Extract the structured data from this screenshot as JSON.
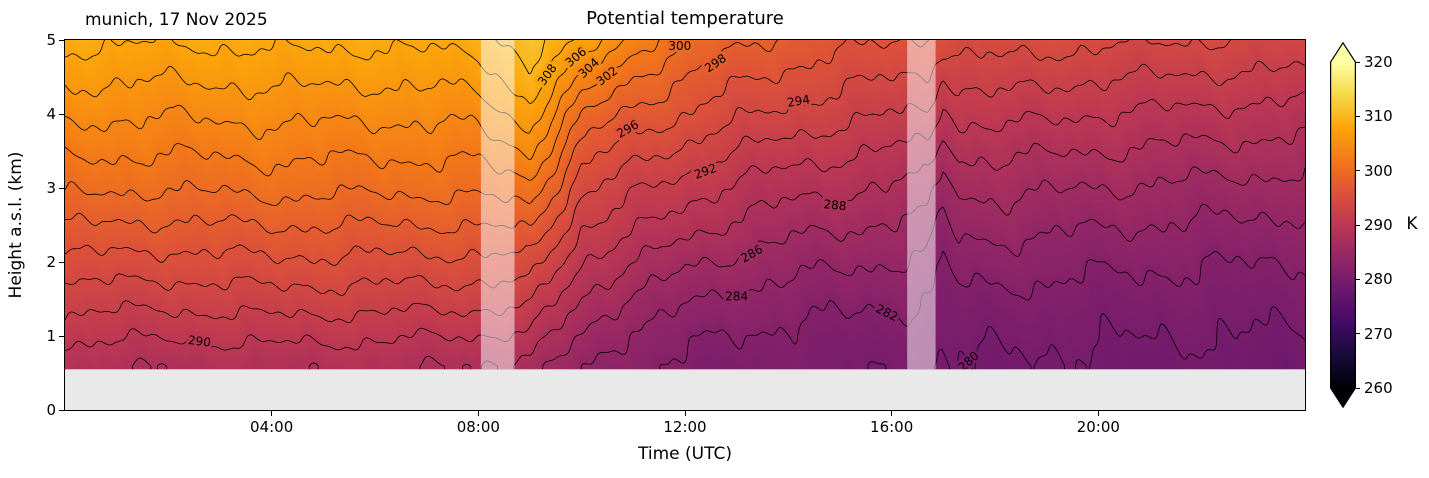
{
  "figure": {
    "annotation": "munich, 17 Nov 2025"
  },
  "chart_data": {
    "type": "heatmap",
    "title": "Potential temperature",
    "xlabel": "Time (UTC)",
    "ylabel": "Height a.s.l. (km)",
    "xlim_hours": [
      0,
      24
    ],
    "ylim_km": [
      0,
      5
    ],
    "x_tick_hours": [
      4,
      8,
      12,
      16,
      20
    ],
    "x_tick_labels": [
      "04:00",
      "08:00",
      "12:00",
      "16:00",
      "20:00"
    ],
    "y_tick_km": [
      0,
      1,
      2,
      3,
      4,
      5
    ],
    "x_hours": [
      0,
      2,
      4,
      6,
      8,
      9,
      10,
      11,
      12,
      13,
      14,
      16,
      16.7,
      17,
      17.3,
      18,
      20,
      22,
      24
    ],
    "heights_km": [
      0.6,
      1.0,
      1.5,
      2.0,
      2.5,
      3.0,
      3.5,
      4.0,
      4.5,
      5.0
    ],
    "values_K": [
      [
        288.5,
        290.5,
        293.0,
        295.5,
        298.0,
        300.5,
        302.5,
        304.5,
        306.5,
        308.5
      ],
      [
        288.2,
        290.2,
        292.7,
        295.2,
        297.7,
        300.1,
        302.2,
        304.2,
        306.2,
        308.2
      ],
      [
        288.6,
        290.6,
        293.2,
        295.7,
        298.1,
        300.6,
        302.6,
        304.6,
        306.6,
        308.6
      ],
      [
        288.4,
        290.3,
        293.0,
        295.5,
        298.0,
        300.4,
        302.4,
        304.4,
        306.4,
        308.4
      ],
      [
        288.0,
        290.0,
        292.8,
        295.4,
        298.0,
        300.5,
        302.6,
        304.7,
        306.8,
        308.8
      ],
      [
        287.0,
        289.5,
        292.5,
        295.5,
        298.5,
        301.5,
        304.5,
        307.2,
        309.6,
        311.2
      ],
      [
        284.5,
        286.0,
        288.0,
        290.0,
        292.2,
        294.5,
        297.0,
        300.0,
        304.0,
        308.0
      ],
      [
        282.5,
        283.5,
        285.5,
        288.0,
        290.5,
        292.5,
        295.0,
        297.5,
        300.0,
        303.0
      ],
      [
        281.5,
        282.5,
        284.5,
        286.5,
        289.0,
        291.0,
        293.5,
        296.0,
        298.0,
        300.5
      ],
      [
        281.0,
        282.0,
        283.5,
        285.5,
        287.5,
        289.5,
        292.0,
        294.5,
        296.5,
        298.5
      ],
      [
        280.8,
        281.5,
        283.0,
        284.8,
        286.8,
        288.8,
        291.0,
        293.5,
        295.5,
        297.5
      ],
      [
        280.3,
        281.0,
        282.3,
        284.0,
        285.8,
        287.8,
        289.8,
        292.0,
        294.0,
        296.0
      ],
      [
        280.0,
        280.8,
        282.0,
        283.6,
        285.4,
        287.4,
        289.4,
        291.8,
        293.8,
        295.8
      ],
      [
        279.8,
        280.2,
        281.0,
        282.0,
        283.2,
        284.8,
        286.8,
        289.2,
        291.8,
        295.0
      ],
      [
        279.8,
        280.5,
        281.5,
        283.0,
        284.6,
        286.4,
        288.4,
        290.6,
        292.8,
        295.0
      ],
      [
        279.8,
        280.5,
        281.5,
        283.0,
        284.8,
        286.5,
        288.5,
        290.8,
        293.0,
        295.0
      ],
      [
        279.5,
        280.2,
        281.2,
        282.5,
        284.2,
        286.0,
        288.0,
        290.0,
        292.2,
        294.5
      ],
      [
        279.3,
        280.0,
        281.0,
        282.2,
        283.8,
        285.5,
        287.5,
        289.5,
        291.8,
        294.0
      ],
      [
        279.2,
        279.8,
        280.8,
        282.0,
        283.5,
        285.2,
        287.2,
        289.2,
        291.5,
        293.8
      ]
    ],
    "contour_levels_K": {
      "start": 278,
      "end": 312,
      "step": 2
    },
    "contour_labels": [
      {
        "value": 290,
        "t": 2.6
      },
      {
        "value": 308,
        "t": 9.35
      },
      {
        "value": 306,
        "t": 9.9
      },
      {
        "value": 304,
        "t": 10.15
      },
      {
        "value": 302,
        "t": 10.5
      },
      {
        "value": 300,
        "t": 11.9
      },
      {
        "value": 298,
        "t": 12.6
      },
      {
        "value": 296,
        "t": 10.9
      },
      {
        "value": 294,
        "t": 14.2
      },
      {
        "value": 292,
        "t": 12.4
      },
      {
        "value": 288,
        "t": 14.9
      },
      {
        "value": 286,
        "t": 13.3
      },
      {
        "value": 284,
        "t": 13.0
      },
      {
        "value": 282,
        "t": 15.9
      },
      {
        "value": 280,
        "t": 17.5
      }
    ],
    "no_data_below_km": 0.55,
    "flagged_periods_hours": [
      [
        8.05,
        8.7
      ],
      [
        16.3,
        16.85
      ]
    ],
    "colorbar": {
      "label": "K",
      "min": 260,
      "max": 320,
      "ticks": [
        260,
        270,
        280,
        290,
        300,
        310,
        320
      ],
      "colormap": "inferno",
      "extend": "both"
    },
    "colors": {
      "no_data_gray": "#e9e9e9",
      "flag_overlay": "rgba(255,255,255,0.5)",
      "contour_line": "#000000",
      "background": "#ffffff"
    }
  }
}
